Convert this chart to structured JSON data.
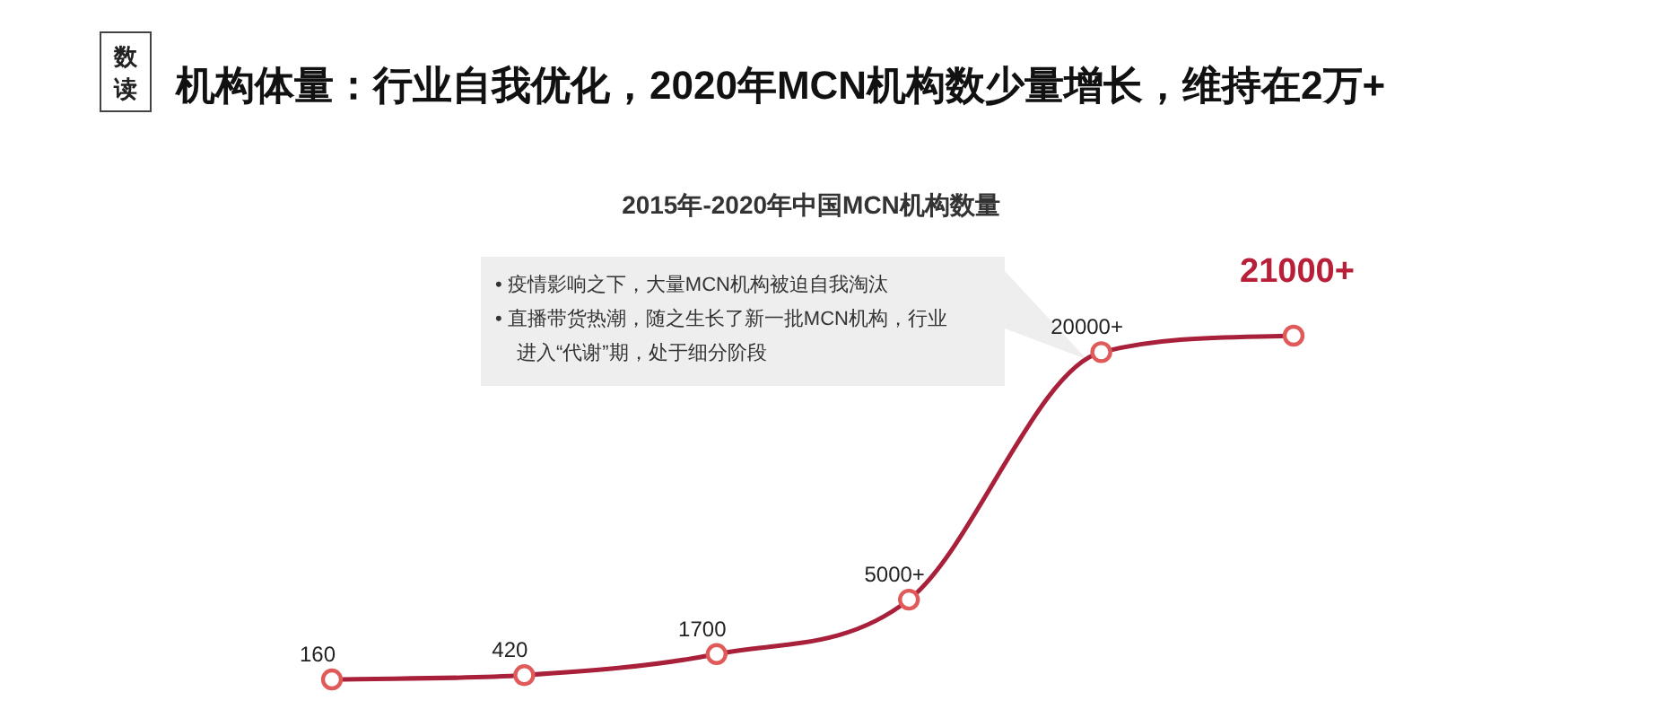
{
  "chart_data": {
    "type": "line",
    "title": "机构体量：行业自我优化，2020年MCN机构数少量增长，维持在2万+",
    "subtitle": "2015年-2020年中国MCN机构数量",
    "categories": [
      null,
      null,
      null,
      null,
      null,
      null
    ],
    "values": [
      160,
      420,
      1700,
      5000,
      20000,
      21000
    ],
    "value_labels": [
      "160",
      "420",
      "1700",
      "5000+",
      "20000+",
      "21000+"
    ],
    "color": "#a8203a",
    "marker": "circle",
    "line_style": "solid",
    "annotations": [
      "数读",
      "• 疫情影响之下，大量MCN机构被迫自我淘汰",
      "• 直播带货热潮，随之生长了新一批MCN机构，行业进入“代谢”期，处于细分阶段"
    ]
  }
}
